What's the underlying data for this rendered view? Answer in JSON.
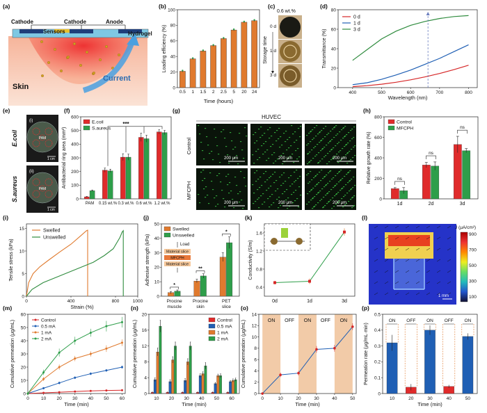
{
  "figure": {
    "panel_letters": [
      "(a)",
      "(b)",
      "(c)",
      "(d)",
      "(e)",
      "(f)",
      "(g)",
      "(h)",
      "(i)",
      "(j)",
      "(k)",
      "(l)",
      "(m)",
      "(n)",
      "(o)",
      "(p)"
    ]
  },
  "panel_a": {
    "labels": {
      "cathode1": "Cathode",
      "cathode2": "Cathode",
      "anode": "Anode",
      "sensors": "Sensors",
      "hydrogel": "Hydrogel",
      "skin": "Skin",
      "current": "Current"
    }
  },
  "panel_c": {
    "title": "0.6 wt.%",
    "ylabel": "Storage time",
    "ticks": [
      "0 d",
      "1 d",
      "3 d"
    ]
  },
  "panel_e": {
    "row1": "E.coil",
    "row2": "S.aureus",
    "sub1": "(i)",
    "sub2": "(ii)",
    "scale": "1 cm",
    "plate_labels": [
      "I",
      "II",
      "III",
      "IV",
      "PAM"
    ]
  },
  "panel_g": {
    "title": "HUVEC",
    "cols": [
      "1d",
      "2d",
      "3d"
    ],
    "rows": [
      "Control",
      "MFCPH"
    ],
    "scale": "200 μm"
  },
  "panel_j": {
    "load": "Load",
    "layers": [
      "Material slice",
      "MFCPH",
      "Material slice"
    ]
  },
  "panel_k": {
    "inset_label": ""
  },
  "panel_l": {
    "colorbar_title": "J (μA/cm²)",
    "ticks": [
      "900",
      "700",
      "500",
      "300",
      "100"
    ],
    "scale": "1 mm"
  },
  "panel_o": {
    "phases": [
      "ON",
      "OFF",
      "ON",
      "OFF",
      "ON"
    ]
  },
  "panel_p": {
    "phases": [
      "ON",
      "OFF",
      "ON",
      "OFF",
      "ON"
    ]
  },
  "chart_data": [
    {
      "panel": "b",
      "type": "bar",
      "categories": [
        "0.5",
        "1",
        "1.5",
        "2",
        "2.5",
        "5",
        "20",
        "24"
      ],
      "values": [
        21,
        37,
        47,
        54,
        63,
        74,
        84,
        86
      ],
      "errors": [
        1,
        1,
        1,
        1,
        1,
        1,
        1,
        1
      ],
      "xlabel": "Time (hours)",
      "ylabel": "Loading efficiency (%)",
      "ylim": [
        0,
        100
      ],
      "yticks": [
        0,
        20,
        40,
        60,
        80,
        100
      ],
      "color": "#e07a2e"
    },
    {
      "panel": "d",
      "type": "line",
      "xlabel": "Wavelength (nm)",
      "ylabel": "Transmittance (%)",
      "xlim": [
        350,
        830
      ],
      "ylim": [
        0,
        80
      ],
      "xticks": [
        400,
        500,
        600,
        700,
        800
      ],
      "yticks": [
        0,
        20,
        40,
        60,
        80
      ],
      "series": [
        {
          "name": "0 d",
          "color": "#d62728",
          "x": [
            400,
            450,
            500,
            550,
            600,
            650,
            700,
            750,
            800
          ],
          "y": [
            1,
            2,
            3.5,
            5.5,
            8,
            11,
            14.5,
            18.5,
            23
          ]
        },
        {
          "name": "1 d",
          "color": "#1f5fb4",
          "x": [
            400,
            450,
            500,
            550,
            600,
            650,
            700,
            750,
            800
          ],
          "y": [
            3,
            5,
            8.5,
            13,
            18,
            24,
            30,
            37,
            44
          ]
        },
        {
          "name": "3 d",
          "color": "#2e8b3d",
          "x": [
            400,
            450,
            500,
            550,
            600,
            650,
            700,
            750,
            800
          ],
          "y": [
            28,
            39,
            50,
            58,
            64,
            68,
            71,
            73,
            74
          ]
        }
      ],
      "marker_x": 660
    },
    {
      "panel": "f",
      "type": "bar",
      "categories": [
        "PAM",
        "0.15 wt.%",
        "0.3 wt.%",
        "0.6 wt.%",
        "1.2 wt.%"
      ],
      "ylabel": "Antibacterial ring area (mm²)",
      "ylim": [
        0,
        600
      ],
      "yticks": [
        0,
        100,
        200,
        300,
        400,
        500,
        600
      ],
      "series": [
        {
          "name": "E.coil",
          "color": "#e02b2b",
          "values": [
            15,
            210,
            305,
            450,
            490
          ],
          "errors": [
            3,
            15,
            25,
            30,
            15
          ]
        },
        {
          "name": "S.aureus",
          "color": "#2e9e4a",
          "values": [
            60,
            205,
            305,
            440,
            485
          ],
          "errors": [
            5,
            12,
            22,
            25,
            15
          ]
        }
      ],
      "sig": "***"
    },
    {
      "panel": "h",
      "type": "bar",
      "categories": [
        "1d",
        "2d",
        "3d"
      ],
      "ylabel": "Relative growth rate (%)",
      "ylim": [
        0,
        800
      ],
      "yticks": [
        0,
        200,
        400,
        600,
        800
      ],
      "series": [
        {
          "name": "Control",
          "color": "#e02b2b",
          "values": [
            100,
            330,
            530
          ],
          "errors": [
            10,
            25,
            80
          ]
        },
        {
          "name": "MFCPH",
          "color": "#2e9e4a",
          "values": [
            80,
            320,
            470
          ],
          "errors": [
            30,
            40,
            20
          ]
        }
      ],
      "sig": [
        "ns",
        "ns",
        "ns"
      ]
    },
    {
      "panel": "i",
      "type": "line",
      "xlabel": "Strain (%)",
      "ylabel": "Tensile stress (kPa)",
      "xlim": [
        0,
        1000
      ],
      "ylim": [
        0,
        16
      ],
      "xticks": [
        0,
        400,
        800,
        1000
      ],
      "xticklabels": [
        "0",
        "400",
        "800",
        "1000"
      ],
      "yticks": [
        0,
        5,
        10,
        15
      ],
      "series": [
        {
          "name": "Swelled",
          "color": "#e07a2e",
          "x": [
            0,
            20,
            60,
            120,
            200,
            300,
            400,
            480,
            540,
            550,
            550
          ],
          "y": [
            0,
            3,
            5,
            6.5,
            8,
            9.8,
            11.5,
            13.2,
            14.5,
            14.6,
            0
          ]
        },
        {
          "name": "Unswelled",
          "color": "#2e8b3d",
          "x": [
            0,
            50,
            150,
            300,
            450,
            600,
            700,
            780,
            840,
            860,
            870,
            870
          ],
          "y": [
            0,
            1.5,
            3,
            4.5,
            6,
            7.5,
            9,
            10.5,
            13,
            14.2,
            14.5,
            0
          ]
        }
      ]
    },
    {
      "panel": "j",
      "type": "bar",
      "categories": [
        "Procine muscle",
        "Procine skin",
        "PET slice"
      ],
      "ylabel": "Adhesive strength (kPa)",
      "ylim": [
        0,
        50
      ],
      "yticks": [
        0,
        10,
        20,
        30,
        40,
        50
      ],
      "series": [
        {
          "name": "Swelled",
          "color": "#e07a2e",
          "values": [
            2.5,
            10.5,
            27
          ],
          "errors": [
            0.8,
            1.2,
            3
          ]
        },
        {
          "name": "Unswelled",
          "color": "#2e9e4a",
          "values": [
            3.5,
            14,
            37
          ],
          "errors": [
            0.8,
            1.5,
            4
          ]
        }
      ],
      "sig": [
        "*",
        "**",
        "*"
      ]
    },
    {
      "panel": "k",
      "type": "line",
      "x": [
        "0d",
        "1d",
        "3d"
      ],
      "values": [
        0.5,
        0.53,
        1.62
      ],
      "errors": [
        0.04,
        0.06,
        0.08
      ],
      "ylabel": "Conductivity (S/m)",
      "ylim": [
        0.2,
        1.8
      ],
      "yticks": [
        0.4,
        0.8,
        1.2,
        1.6
      ],
      "color": "#2e9e4a"
    },
    {
      "panel": "m",
      "type": "line",
      "xlabel": "Time (min)",
      "ylabel": "Cumulative permeation (μg/mL)",
      "xlim": [
        0,
        62
      ],
      "ylim": [
        0,
        60
      ],
      "xticks": [
        0,
        10,
        20,
        30,
        40,
        50,
        60
      ],
      "yticks": [
        0,
        10,
        20,
        30,
        40,
        50,
        60
      ],
      "x": [
        0,
        10,
        20,
        30,
        40,
        50,
        60
      ],
      "series": [
        {
          "name": "Control",
          "color": "#d62728",
          "values": [
            0,
            0.5,
            1,
            1.5,
            2,
            2.3,
            2.5
          ],
          "errors": [
            0.2,
            0.2,
            0.2,
            0.2,
            0.2,
            0.2,
            0.2
          ]
        },
        {
          "name": "0.5 mA",
          "color": "#1f5fb4",
          "values": [
            0,
            4,
            8,
            12,
            15,
            17.5,
            20
          ],
          "errors": [
            0.5,
            0.8,
            1,
            1,
            1,
            1,
            1.2
          ]
        },
        {
          "name": "1 mA",
          "color": "#e07a2e",
          "values": [
            0,
            11,
            20,
            26.5,
            30,
            34,
            38.5
          ],
          "errors": [
            1,
            1.5,
            2,
            2,
            2,
            2.5,
            2.5
          ]
        },
        {
          "name": "2 mA",
          "color": "#2e9e4a",
          "values": [
            0,
            16,
            31,
            40,
            46,
            51,
            54
          ],
          "errors": [
            1.5,
            2,
            3,
            3,
            3,
            4,
            4
          ]
        }
      ]
    },
    {
      "panel": "n",
      "type": "bar",
      "categories": [
        "10",
        "20",
        "30",
        "40",
        "50",
        "60"
      ],
      "xlabel": "Time (min)",
      "ylabel": "Cumulative permeation (μg/mL)",
      "ylim": [
        0,
        20
      ],
      "yticks": [
        0,
        4,
        8,
        12,
        16,
        20
      ],
      "series": [
        {
          "name": "Control",
          "color": "#e02b2b",
          "values": [
            0.3,
            0.3,
            0.3,
            0.3,
            0.3,
            0.3
          ],
          "errors": [
            0.1,
            0.1,
            0.1,
            0.1,
            0.1,
            0.1
          ]
        },
        {
          "name": "0.5 mA",
          "color": "#1f5fb4",
          "values": [
            3.5,
            3,
            3.3,
            4.5,
            2.5,
            3
          ],
          "errors": [
            0.5,
            0.5,
            0.5,
            0.5,
            0.3,
            0.3
          ]
        },
        {
          "name": "1 mA",
          "color": "#e07a2e",
          "values": [
            10.5,
            8.5,
            8,
            5,
            4.5,
            3.3
          ],
          "errors": [
            1,
            0.8,
            0.8,
            0.5,
            0.4,
            0.4
          ]
        },
        {
          "name": "2 mA",
          "color": "#2e9e4a",
          "values": [
            17,
            12,
            12,
            7,
            4.5,
            3.5
          ],
          "errors": [
            1.5,
            1,
            1,
            0.8,
            0.5,
            0.4
          ]
        }
      ]
    },
    {
      "panel": "o",
      "type": "line",
      "xlabel": "Time (min)",
      "ylabel": "Cumulative permeation (μg/mL)",
      "xlim": [
        -2,
        52
      ],
      "ylim": [
        0,
        14
      ],
      "xticks": [
        0,
        10,
        20,
        30,
        40,
        50
      ],
      "yticks": [
        0,
        2,
        4,
        6,
        8,
        10,
        12,
        14
      ],
      "x": [
        0,
        10,
        20,
        30,
        40,
        50
      ],
      "values": [
        0,
        3.3,
        3.6,
        7.8,
        8,
        11.8
      ],
      "errors": [
        0.1,
        0.4,
        0.4,
        0.6,
        0.6,
        0.6
      ],
      "color": "#d62728",
      "line_color": "#1f5fb4"
    },
    {
      "panel": "p",
      "type": "bar",
      "categories": [
        "10",
        "20",
        "30",
        "40",
        "50"
      ],
      "xlabel": "Time (min)",
      "ylabel": "Permeation rate (μg/mL·min)",
      "ylim": [
        0,
        0.5
      ],
      "yticks": [
        0,
        0.1,
        0.2,
        0.3,
        0.4,
        0.5
      ],
      "values": [
        0.32,
        0.04,
        0.4,
        0.045,
        0.36
      ],
      "errors": [
        0.05,
        0.02,
        0.03,
        0.01,
        0.02
      ],
      "colors": [
        "#1f5fb4",
        "#e02b2b",
        "#1f5fb4",
        "#e02b2b",
        "#1f5fb4"
      ]
    }
  ]
}
